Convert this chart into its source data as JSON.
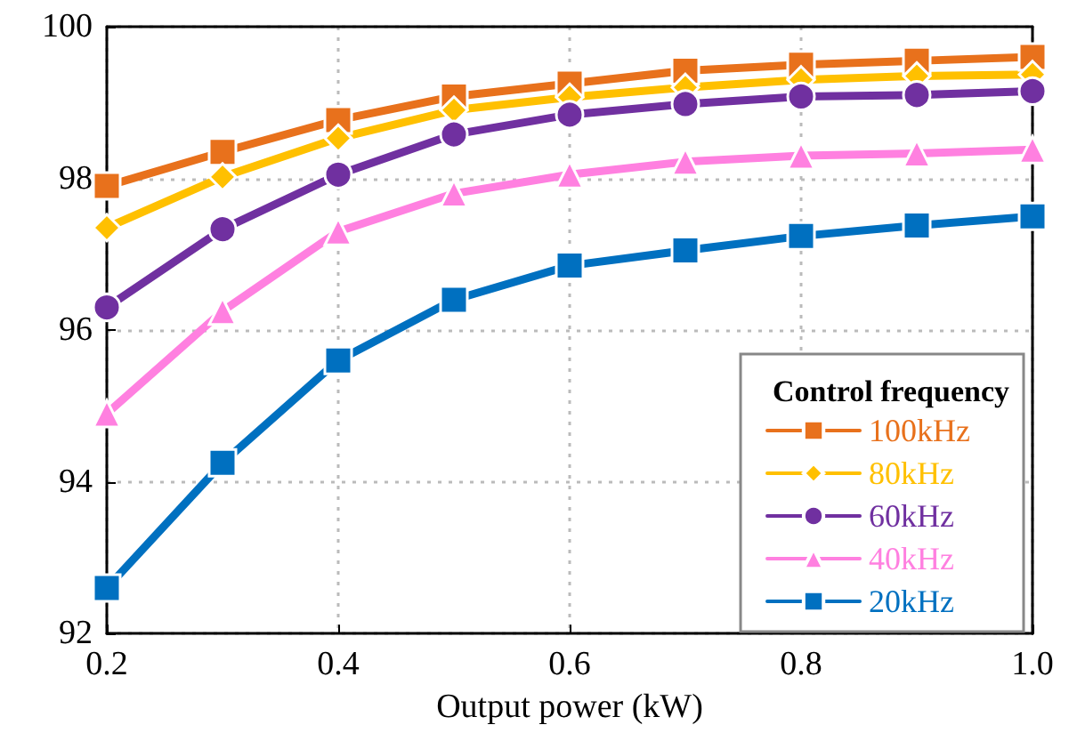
{
  "chart_data": {
    "type": "line",
    "xlabel": "Output power (kW)",
    "legend_title": "Control frequency",
    "x": [
      0.2,
      0.3,
      0.4,
      0.5,
      0.6,
      0.7,
      0.8,
      0.9,
      1.0
    ],
    "xlim": [
      0.2,
      1.0
    ],
    "xticks": [
      0.2,
      0.4,
      0.6,
      0.8,
      {
        "value": 1,
        "label": "1.0"
      }
    ],
    "ylim": [
      92,
      100
    ],
    "yticks": [
      92,
      94,
      96,
      98,
      100
    ],
    "grid": true,
    "legend": "bottom right",
    "line_style": "solid",
    "series": [
      {
        "name": "100kHz",
        "color": "#e8711c",
        "marker": "square",
        "values": [
          97.9,
          98.35,
          98.77,
          99.08,
          99.25,
          99.42,
          99.5,
          99.55,
          99.6
        ]
      },
      {
        "name": "80kHz",
        "color": "#ffc000",
        "marker": "diamond",
        "values": [
          97.35,
          98.02,
          98.53,
          98.9,
          99.07,
          99.2,
          99.3,
          99.35,
          99.37
        ]
      },
      {
        "name": "60kHz",
        "color": "#7030a0",
        "marker": "circle",
        "values": [
          96.3,
          97.33,
          98.05,
          98.58,
          98.84,
          98.98,
          99.08,
          99.1,
          99.15
        ]
      },
      {
        "name": "40kHz",
        "color": "#ff80e0",
        "marker": "triangle",
        "values": [
          94.9,
          96.25,
          97.3,
          97.8,
          98.05,
          98.22,
          98.3,
          98.33,
          98.38
        ]
      },
      {
        "name": "20kHz",
        "color": "#0070c0",
        "marker": "square",
        "values": [
          92.6,
          94.25,
          95.6,
          96.4,
          96.85,
          97.05,
          97.24,
          97.38,
          97.5
        ]
      }
    ]
  }
}
